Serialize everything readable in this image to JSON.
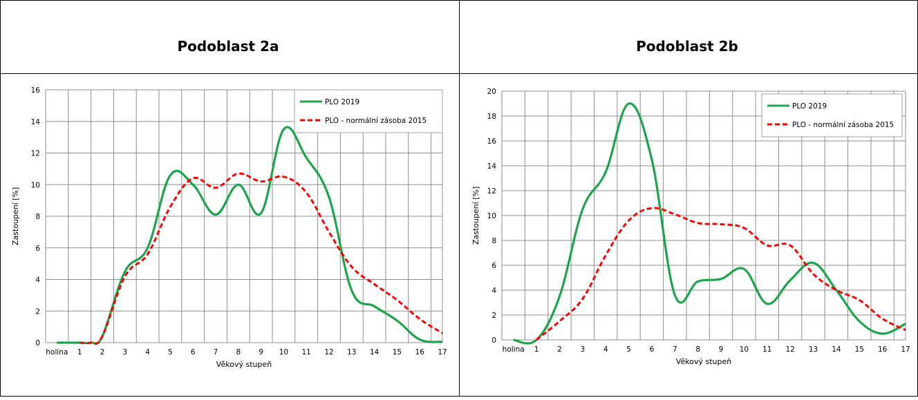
{
  "panels": [
    {
      "title": "Podoblast 2a"
    },
    {
      "title": "Podoblast 2b"
    }
  ],
  "colors": {
    "plo2019": "#1aa54b",
    "norm2015": "#ff0000",
    "grid": "#8c8c8c"
  },
  "chart_data": [
    {
      "type": "line",
      "title": "",
      "xlabel": "Věkový stupeň",
      "ylabel": "Zastoupení [%]",
      "categories": [
        "holina",
        "1",
        "2",
        "3",
        "4",
        "5",
        "6",
        "7",
        "8",
        "9",
        "10",
        "11",
        "12",
        "13",
        "14",
        "15",
        "16",
        "17"
      ],
      "ylim": [
        0,
        16
      ],
      "yticks": [
        0,
        2,
        4,
        6,
        8,
        10,
        12,
        14,
        16
      ],
      "grid": true,
      "legend_position": "top-right",
      "series": [
        {
          "name": "PLO 2019",
          "style": "solid",
          "color": "#1aa54b",
          "x": [
            "holina",
            "1",
            "1.5",
            "2",
            "3",
            "4",
            "5",
            "6",
            "7",
            "8",
            "9",
            "10",
            "11",
            "12",
            "13",
            "14",
            "15",
            "16",
            "17"
          ],
          "values": [
            0,
            0,
            0,
            0.4,
            4.5,
            6.0,
            10.6,
            10.0,
            8.1,
            10.0,
            8.2,
            13.5,
            11.7,
            9.2,
            3.3,
            2.3,
            1.4,
            0.2,
            0.05
          ]
        },
        {
          "name": "PLO - normální zásoba 2015",
          "style": "dashed",
          "color": "#ff0000",
          "x": [
            "1",
            "1.5",
            "2",
            "3",
            "4",
            "5",
            "6",
            "7",
            "8",
            "9",
            "10",
            "11",
            "12",
            "13",
            "14",
            "15",
            "16",
            "17"
          ],
          "values": [
            0,
            0,
            0.4,
            4.2,
            5.6,
            8.6,
            10.4,
            9.8,
            10.7,
            10.2,
            10.5,
            9.5,
            7.0,
            4.8,
            3.7,
            2.7,
            1.5,
            0.6
          ]
        }
      ]
    },
    {
      "type": "line",
      "title": "",
      "xlabel": "Věkový stupeň",
      "ylabel": "Zastoupení [%]",
      "categories": [
        "holina",
        "1",
        "2",
        "3",
        "4",
        "5",
        "6",
        "7",
        "8",
        "9",
        "10",
        "11",
        "12",
        "13",
        "14",
        "15",
        "16",
        "17"
      ],
      "ylim": [
        0,
        20
      ],
      "yticks": [
        0,
        2,
        4,
        6,
        8,
        10,
        12,
        14,
        16,
        18,
        20
      ],
      "grid": true,
      "legend_position": "top-right",
      "series": [
        {
          "name": "PLO 2019",
          "style": "solid",
          "color": "#1aa54b",
          "x": [
            "holina",
            "1",
            "2",
            "3",
            "4",
            "5",
            "6",
            "7",
            "8",
            "9",
            "10",
            "11",
            "12",
            "13",
            "14",
            "15",
            "16",
            "17"
          ],
          "values": [
            0,
            0,
            3.5,
            10.5,
            13.5,
            19.0,
            14.5,
            3.6,
            4.7,
            4.9,
            5.7,
            2.9,
            4.8,
            6.2,
            4.0,
            1.5,
            0.5,
            1.3
          ]
        },
        {
          "name": "PLO - normální zásoba 2015",
          "style": "dashed",
          "color": "#ff0000",
          "x": [
            "1",
            "2",
            "3",
            "4",
            "5",
            "6",
            "7",
            "8",
            "9",
            "10",
            "11",
            "12",
            "13",
            "14",
            "15",
            "16",
            "17"
          ],
          "values": [
            0,
            1.5,
            3.3,
            6.8,
            9.6,
            10.6,
            10.1,
            9.4,
            9.3,
            9.0,
            7.6,
            7.6,
            5.3,
            4.0,
            3.2,
            1.7,
            0.8
          ]
        }
      ]
    }
  ]
}
